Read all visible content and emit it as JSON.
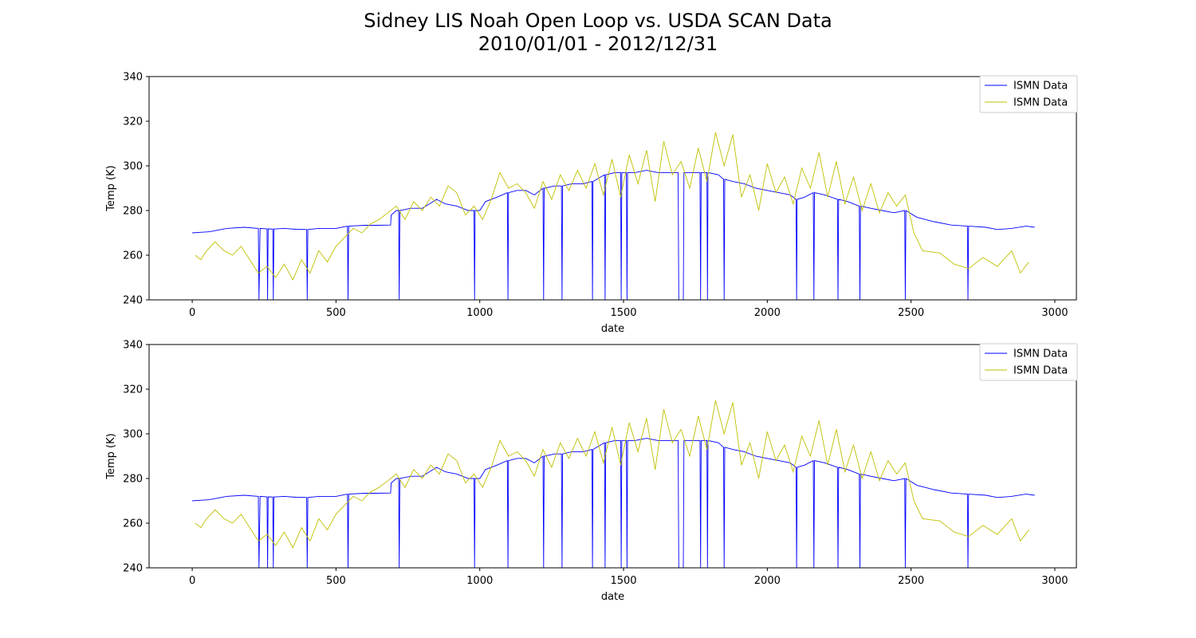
{
  "figure": {
    "title_line1": "Sidney LIS Noah Open Loop vs. USDA SCAN Data",
    "title_line2": "2010/01/01 - 2012/12/31"
  },
  "colors": {
    "series_blue": "#0000ff",
    "series_yellow": "#bfbf00",
    "axes": "#000000",
    "legend_border": "#cccccc"
  },
  "chart_data": [
    {
      "type": "line",
      "xlabel": "date",
      "ylabel": "Temp (K)",
      "xlim": [
        -150,
        3075
      ],
      "ylim": [
        240,
        340
      ],
      "xticks": [
        0,
        500,
        1000,
        1500,
        2000,
        2500,
        3000
      ],
      "yticks": [
        240,
        260,
        280,
        300,
        320,
        340
      ],
      "legend_position": "upper right",
      "legend": [
        "ISMN Data",
        "ISMN Data"
      ],
      "series": [
        {
          "name": "ISMN Data",
          "color": "blue",
          "x": [
            0,
            60,
            120,
            180,
            230,
            232,
            236,
            260,
            262,
            264,
            280,
            282,
            284,
            320,
            360,
            398,
            400,
            402,
            440,
            500,
            540,
            542,
            544,
            600,
            640,
            690,
            692,
            710,
            718,
            720,
            722,
            760,
            800,
            850,
            880,
            920,
            960,
            980,
            982,
            984,
            1000,
            1020,
            1060,
            1096,
            1098,
            1100,
            1130,
            1160,
            1190,
            1220,
            1222,
            1224,
            1260,
            1284,
            1286,
            1288,
            1320,
            1360,
            1390,
            1392,
            1394,
            1420,
            1434,
            1436,
            1438,
            1470,
            1490,
            1492,
            1494,
            1510,
            1512,
            1514,
            1540,
            1580,
            1620,
            1660,
            1690,
            1692,
            1708,
            1710,
            1740,
            1766,
            1768,
            1770,
            1790,
            1792,
            1794,
            1830,
            1848,
            1850,
            1852,
            1880,
            1920,
            1960,
            2000,
            2040,
            2080,
            2100,
            2102,
            2104,
            2130,
            2160,
            2162,
            2164,
            2200,
            2244,
            2246,
            2248,
            2280,
            2320,
            2322,
            2324,
            2360,
            2400,
            2440,
            2478,
            2480,
            2482,
            2520,
            2580,
            2640,
            2696,
            2698,
            2700,
            2760,
            2800,
            2850,
            2900,
            2930
          ],
          "y": [
            270,
            270.5,
            272,
            272.5,
            272,
            240,
            272,
            271.8,
            240,
            271.8,
            271.7,
            240,
            271.7,
            272,
            271.6,
            271.5,
            240,
            271.5,
            272,
            272,
            273,
            240,
            273,
            273.4,
            273.4,
            273.5,
            278,
            280,
            280,
            240,
            280,
            281,
            281,
            285,
            283,
            282,
            280,
            280,
            240,
            280,
            280,
            284,
            286,
            288,
            240,
            288,
            289,
            289,
            287,
            290,
            240,
            290,
            291,
            291,
            240,
            291,
            292,
            292,
            293,
            240,
            293,
            295,
            296,
            240,
            296,
            297,
            297,
            240,
            297,
            297,
            240,
            297,
            297,
            298,
            297,
            297,
            297,
            240,
            240,
            297,
            297,
            297,
            240,
            297,
            297,
            240,
            297,
            296,
            294,
            240,
            294,
            293,
            292,
            290,
            289,
            288,
            287,
            285,
            240,
            285,
            286,
            288,
            240,
            288,
            287,
            285,
            240,
            285,
            284,
            282,
            240,
            282,
            281,
            280,
            279,
            280,
            240,
            280,
            277,
            275,
            273.5,
            273,
            240,
            273,
            272.5,
            271.5,
            272,
            273,
            272.5
          ]
        },
        {
          "name": "ISMN Data",
          "color": "yellow",
          "x": [
            10,
            30,
            50,
            80,
            110,
            140,
            170,
            200,
            230,
            260,
            290,
            320,
            350,
            380,
            410,
            440,
            470,
            500,
            530,
            560,
            590,
            620,
            650,
            680,
            710,
            740,
            770,
            800,
            830,
            860,
            890,
            920,
            950,
            980,
            1010,
            1040,
            1070,
            1100,
            1130,
            1160,
            1190,
            1220,
            1250,
            1280,
            1310,
            1340,
            1370,
            1400,
            1430,
            1460,
            1490,
            1520,
            1550,
            1580,
            1610,
            1640,
            1670,
            1700,
            1730,
            1760,
            1790,
            1820,
            1850,
            1880,
            1910,
            1940,
            1970,
            2000,
            2030,
            2060,
            2090,
            2120,
            2150,
            2180,
            2210,
            2240,
            2270,
            2300,
            2330,
            2360,
            2390,
            2420,
            2450,
            2480,
            2510,
            2540,
            2600,
            2650,
            2700,
            2750,
            2800,
            2850,
            2880,
            2910
          ],
          "y": [
            260,
            258,
            262,
            266,
            262,
            260,
            264,
            258,
            252,
            255,
            250,
            256,
            249,
            258,
            252,
            262,
            257,
            264,
            268,
            272,
            270,
            274,
            276,
            279,
            282,
            276,
            284,
            280,
            286,
            282,
            291,
            288,
            278,
            282,
            276,
            285,
            297,
            290,
            292,
            288,
            281,
            293,
            285,
            296,
            289,
            298,
            290,
            301,
            287,
            303,
            286,
            305,
            292,
            307,
            284,
            311,
            296,
            302,
            290,
            308,
            293,
            315,
            300,
            314,
            286,
            296,
            280,
            301,
            288,
            295,
            283,
            299,
            290,
            306,
            286,
            302,
            283,
            295,
            280,
            292,
            279,
            288,
            282,
            287,
            270,
            262,
            261,
            256,
            254,
            259,
            255,
            262,
            252,
            257
          ]
        }
      ]
    },
    {
      "type": "line",
      "xlabel": "date",
      "ylabel": "Temp (K)",
      "xlim": [
        -150,
        3075
      ],
      "ylim": [
        240,
        340
      ],
      "xticks": [
        0,
        500,
        1000,
        1500,
        2000,
        2500,
        3000
      ],
      "yticks": [
        240,
        260,
        280,
        300,
        320,
        340
      ],
      "legend_position": "upper right",
      "legend": [
        "ISMN Data",
        "ISMN Data"
      ],
      "series": [
        {
          "name": "ISMN Data",
          "color": "blue",
          "x": [
            0,
            60,
            120,
            180,
            230,
            232,
            236,
            260,
            262,
            264,
            280,
            282,
            284,
            320,
            360,
            398,
            400,
            402,
            440,
            500,
            540,
            542,
            544,
            600,
            640,
            690,
            692,
            710,
            718,
            720,
            722,
            760,
            800,
            850,
            880,
            920,
            960,
            980,
            982,
            984,
            1000,
            1020,
            1060,
            1096,
            1098,
            1100,
            1130,
            1160,
            1190,
            1220,
            1222,
            1224,
            1260,
            1284,
            1286,
            1288,
            1320,
            1360,
            1390,
            1392,
            1394,
            1420,
            1434,
            1436,
            1438,
            1470,
            1490,
            1492,
            1494,
            1510,
            1512,
            1514,
            1540,
            1580,
            1620,
            1660,
            1690,
            1692,
            1708,
            1710,
            1740,
            1766,
            1768,
            1770,
            1790,
            1792,
            1794,
            1830,
            1848,
            1850,
            1852,
            1880,
            1920,
            1960,
            2000,
            2040,
            2080,
            2100,
            2102,
            2104,
            2130,
            2160,
            2162,
            2164,
            2200,
            2244,
            2246,
            2248,
            2280,
            2320,
            2322,
            2324,
            2360,
            2400,
            2440,
            2478,
            2480,
            2482,
            2520,
            2580,
            2640,
            2696,
            2698,
            2700,
            2760,
            2800,
            2850,
            2900,
            2930
          ],
          "y": [
            270,
            270.5,
            272,
            272.5,
            272,
            240,
            272,
            271.8,
            240,
            271.8,
            271.7,
            240,
            271.7,
            272,
            271.6,
            271.5,
            240,
            271.5,
            272,
            272,
            273,
            240,
            273,
            273.4,
            273.4,
            273.5,
            278,
            280,
            280,
            240,
            280,
            281,
            281,
            285,
            283,
            282,
            280,
            280,
            240,
            280,
            280,
            284,
            286,
            288,
            240,
            288,
            289,
            289,
            287,
            290,
            240,
            290,
            291,
            291,
            240,
            291,
            292,
            292,
            293,
            240,
            293,
            295,
            296,
            240,
            296,
            297,
            297,
            240,
            297,
            297,
            240,
            297,
            297,
            298,
            297,
            297,
            297,
            240,
            240,
            297,
            297,
            297,
            240,
            297,
            297,
            240,
            297,
            296,
            294,
            240,
            294,
            293,
            292,
            290,
            289,
            288,
            287,
            285,
            240,
            285,
            286,
            288,
            240,
            288,
            287,
            285,
            240,
            285,
            284,
            282,
            240,
            282,
            281,
            280,
            279,
            280,
            240,
            280,
            277,
            275,
            273.5,
            273,
            240,
            273,
            272.5,
            271.5,
            272,
            273,
            272.5
          ]
        },
        {
          "name": "ISMN Data",
          "color": "yellow",
          "x": [
            10,
            30,
            50,
            80,
            110,
            140,
            170,
            200,
            230,
            260,
            290,
            320,
            350,
            380,
            410,
            440,
            470,
            500,
            530,
            560,
            590,
            620,
            650,
            680,
            710,
            740,
            770,
            800,
            830,
            860,
            890,
            920,
            950,
            980,
            1010,
            1040,
            1070,
            1100,
            1130,
            1160,
            1190,
            1220,
            1250,
            1280,
            1310,
            1340,
            1370,
            1400,
            1430,
            1460,
            1490,
            1520,
            1550,
            1580,
            1610,
            1640,
            1670,
            1700,
            1730,
            1760,
            1790,
            1820,
            1850,
            1880,
            1910,
            1940,
            1970,
            2000,
            2030,
            2060,
            2090,
            2120,
            2150,
            2180,
            2210,
            2240,
            2270,
            2300,
            2330,
            2360,
            2390,
            2420,
            2450,
            2480,
            2510,
            2540,
            2600,
            2650,
            2700,
            2750,
            2800,
            2850,
            2880,
            2910
          ],
          "y": [
            260,
            258,
            262,
            266,
            262,
            260,
            264,
            258,
            252,
            255,
            250,
            256,
            249,
            258,
            252,
            262,
            257,
            264,
            268,
            272,
            270,
            274,
            276,
            279,
            282,
            276,
            284,
            280,
            286,
            282,
            291,
            288,
            278,
            282,
            276,
            285,
            297,
            290,
            292,
            288,
            281,
            293,
            285,
            296,
            289,
            298,
            290,
            301,
            287,
            303,
            286,
            305,
            292,
            307,
            284,
            311,
            296,
            302,
            290,
            308,
            293,
            315,
            300,
            314,
            286,
            296,
            280,
            301,
            288,
            295,
            283,
            299,
            290,
            306,
            286,
            302,
            283,
            295,
            280,
            292,
            279,
            288,
            282,
            287,
            270,
            262,
            261,
            256,
            254,
            259,
            255,
            262,
            252,
            257
          ]
        }
      ]
    }
  ]
}
